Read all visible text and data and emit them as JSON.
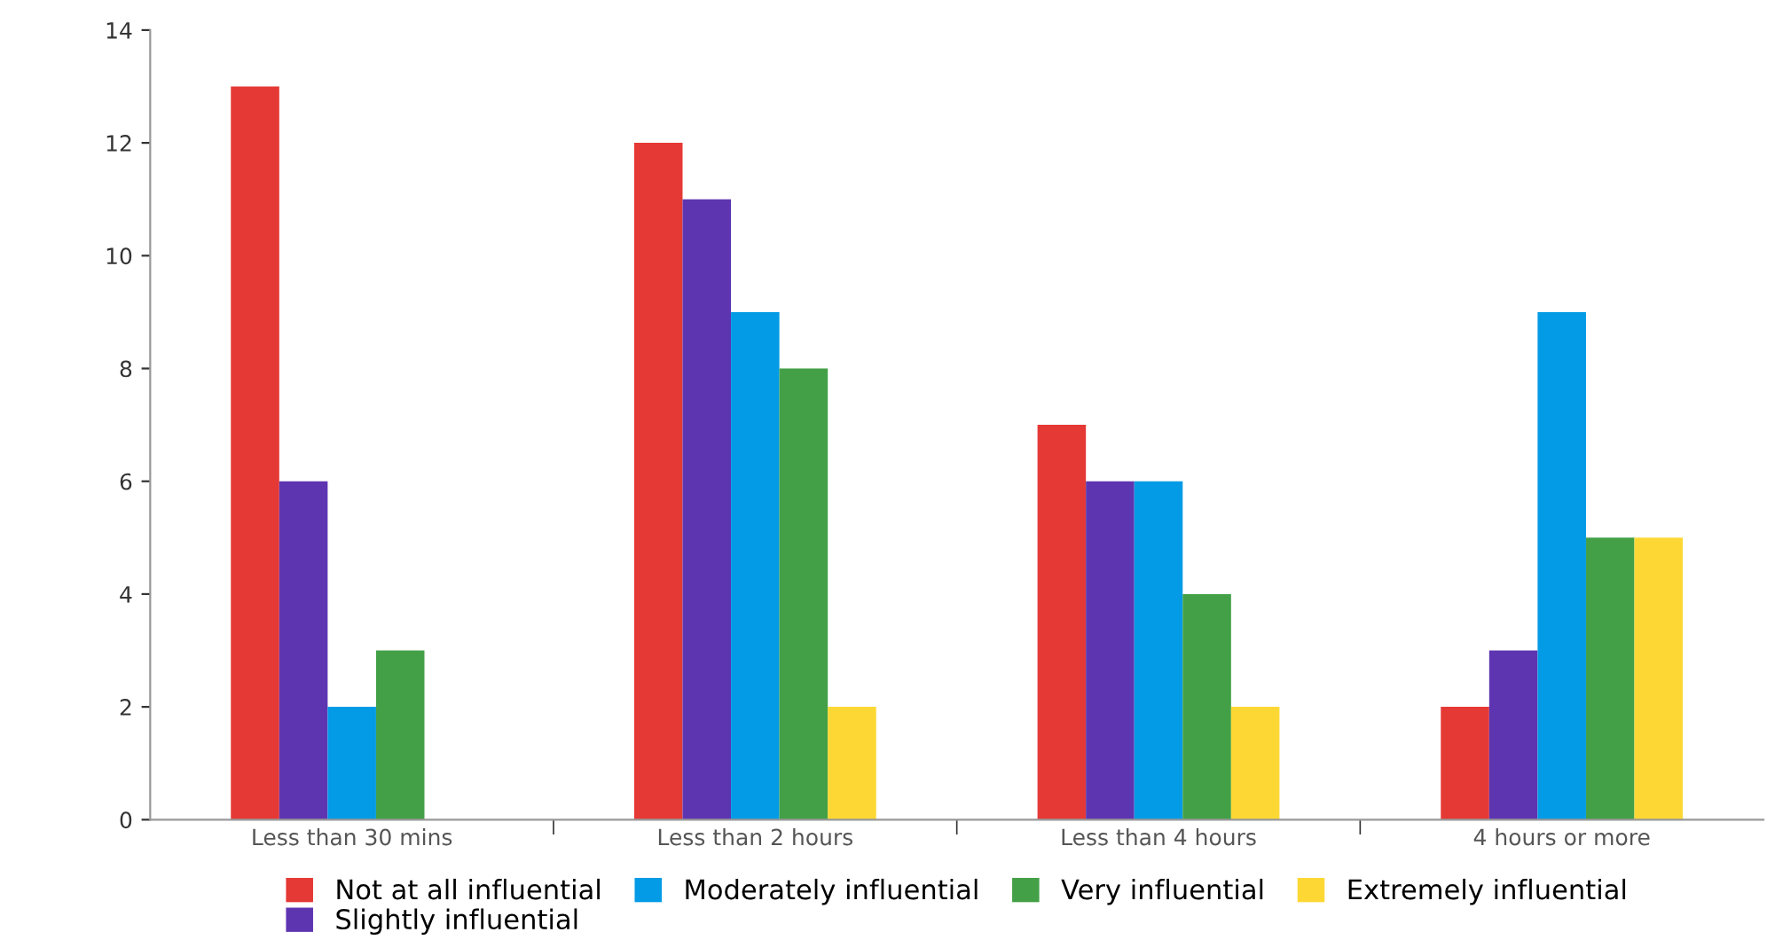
{
  "chart_data": {
    "type": "bar",
    "categories": [
      "Less than 30 mins",
      "Less than 2 hours",
      "Less than 4 hours",
      "4 hours or more"
    ],
    "series": [
      {
        "name": "Not at all influential",
        "color": "#e53935",
        "values": [
          13,
          12,
          7,
          2
        ]
      },
      {
        "name": "Slightly influential",
        "color": "#5e35b1",
        "values": [
          6,
          11,
          6,
          3
        ]
      },
      {
        "name": "Moderately influential",
        "color": "#039be5",
        "values": [
          2,
          9,
          6,
          9
        ]
      },
      {
        "name": "Very influential",
        "color": "#43a047",
        "values": [
          3,
          8,
          4,
          5
        ]
      },
      {
        "name": "Extremely influential",
        "color": "#fdd835",
        "values": [
          0,
          2,
          2,
          5
        ]
      }
    ],
    "ylim": [
      0,
      14
    ],
    "yticks": [
      0,
      2,
      4,
      6,
      8,
      10,
      12,
      14
    ],
    "grid": false,
    "legend": "bottom"
  }
}
